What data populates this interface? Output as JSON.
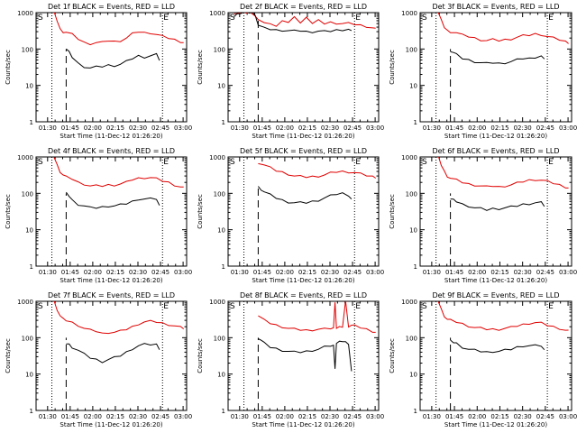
{
  "colors": {
    "events": "#000000",
    "lld": "#e00000",
    "axis": "#000000",
    "background": "#ffffff"
  },
  "shared": {
    "ylabel": "Counts/sec",
    "xlabel": "Start Time (11-Dec-12 01:26:20)",
    "xticks": [
      "01:30",
      "01:45",
      "02:00",
      "02:15",
      "02:30",
      "02:45",
      "03:00"
    ],
    "yticks": [
      "1",
      "10",
      "100",
      "1000"
    ],
    "marker_start": "S",
    "marker_end": "E"
  },
  "chart_data": [
    {
      "type": "line",
      "title": "Det 1f BLACK = Events, RED = LLD",
      "xlim_min": [
        -4,
        96
      ],
      "ylim": [
        1,
        1000
      ],
      "log_y": true,
      "dotted_lines_min": [
        6.5,
        80
      ],
      "dashed_line_min": [
        16,
        1,
        100
      ],
      "series": [
        {
          "name": "RED = LLD",
          "x": [
            8,
            10,
            12,
            14,
            16,
            20,
            24,
            28,
            32,
            36,
            40,
            44,
            48,
            52,
            56,
            60,
            64,
            68,
            72,
            76,
            80,
            84,
            88,
            92,
            94
          ],
          "y": [
            1000,
            600,
            350,
            300,
            290,
            250,
            190,
            150,
            140,
            150,
            150,
            170,
            160,
            170,
            200,
            260,
            300,
            280,
            280,
            250,
            220,
            200,
            180,
            160,
            150
          ]
        },
        {
          "name": "BLACK = Events",
          "x": [
            16,
            18,
            20,
            24,
            28,
            32,
            36,
            40,
            44,
            48,
            52,
            56,
            60,
            64,
            68,
            72,
            76,
            78
          ],
          "y": [
            100,
            80,
            60,
            40,
            33,
            30,
            32,
            33,
            36,
            35,
            38,
            45,
            55,
            65,
            60,
            65,
            70,
            50
          ]
        }
      ]
    },
    {
      "type": "line",
      "title": "Det 2f BLACK = Events, RED = LLD",
      "xlim_min": [
        -4,
        96
      ],
      "ylim": [
        1,
        1000
      ],
      "log_y": true,
      "dotted_lines_min": [
        6.5,
        80
      ],
      "dashed_line_min": [
        16,
        1,
        700
      ],
      "series": [
        {
          "name": "RED = LLD",
          "x": [
            0,
            2,
            4,
            6,
            8,
            10,
            12,
            14,
            16,
            20,
            24,
            28,
            32,
            36,
            40,
            44,
            48,
            52,
            56,
            60,
            64,
            68,
            72,
            76,
            80,
            84,
            88,
            92,
            94
          ],
          "y": [
            900,
            1000,
            1000,
            1000,
            1000,
            1000,
            1000,
            800,
            600,
            550,
            480,
            450,
            600,
            500,
            800,
            500,
            800,
            500,
            600,
            500,
            540,
            520,
            500,
            500,
            480,
            450,
            420,
            380,
            350
          ]
        },
        {
          "name": "BLACK = Events",
          "x": [
            0,
            2,
            4,
            6,
            8,
            10,
            12,
            14,
            16,
            20,
            24,
            28,
            32,
            36,
            40,
            44,
            48,
            52,
            56,
            60,
            64,
            68,
            72,
            76,
            78
          ],
          "y": [
            800,
            900,
            1000,
            1000,
            1000,
            1000,
            1000,
            900,
            450,
            370,
            350,
            330,
            330,
            320,
            310,
            320,
            300,
            300,
            310,
            300,
            310,
            330,
            340,
            350,
            300
          ]
        }
      ]
    },
    {
      "type": "line",
      "title": "Det 3f BLACK = Events, RED = LLD",
      "xlim_min": [
        -4,
        96
      ],
      "ylim": [
        1,
        1000
      ],
      "log_y": true,
      "dotted_lines_min": [
        6.5,
        80
      ],
      "dashed_line_min": [
        16,
        1,
        100
      ],
      "series": [
        {
          "name": "RED = LLD",
          "x": [
            8,
            10,
            12,
            14,
            16,
            20,
            24,
            28,
            32,
            36,
            40,
            44,
            48,
            52,
            56,
            60,
            64,
            68,
            72,
            76,
            80,
            84,
            88,
            92,
            94
          ],
          "y": [
            1000,
            600,
            400,
            320,
            300,
            280,
            240,
            220,
            200,
            180,
            170,
            180,
            170,
            180,
            190,
            210,
            230,
            240,
            260,
            250,
            220,
            200,
            180,
            160,
            150
          ]
        },
        {
          "name": "BLACK = Events",
          "x": [
            16,
            18,
            20,
            24,
            28,
            32,
            36,
            40,
            44,
            48,
            52,
            56,
            60,
            64,
            68,
            72,
            76,
            78
          ],
          "y": [
            90,
            80,
            70,
            55,
            50,
            45,
            42,
            40,
            42,
            40,
            42,
            45,
            50,
            55,
            55,
            60,
            65,
            50
          ]
        }
      ]
    },
    {
      "type": "line",
      "title": "Det 4f BLACK = Events, RED = LLD",
      "xlim_min": [
        -4,
        96
      ],
      "ylim": [
        1,
        1000
      ],
      "log_y": true,
      "dotted_lines_min": [
        6.5,
        80
      ],
      "dashed_line_min": [
        16,
        1,
        100
      ],
      "series": [
        {
          "name": "RED = LLD",
          "x": [
            8,
            10,
            12,
            14,
            16,
            20,
            24,
            28,
            32,
            36,
            40,
            44,
            48,
            52,
            56,
            60,
            64,
            68,
            72,
            76,
            80,
            84,
            88,
            92,
            94
          ],
          "y": [
            1000,
            600,
            400,
            320,
            280,
            250,
            200,
            180,
            160,
            160,
            160,
            170,
            170,
            180,
            200,
            240,
            260,
            270,
            270,
            250,
            220,
            200,
            170,
            150,
            140
          ]
        },
        {
          "name": "BLACK = Events",
          "x": [
            16,
            18,
            20,
            24,
            28,
            32,
            36,
            40,
            44,
            48,
            52,
            56,
            60,
            64,
            68,
            72,
            76,
            78
          ],
          "y": [
            100,
            85,
            65,
            50,
            45,
            40,
            40,
            42,
            45,
            45,
            48,
            52,
            60,
            70,
            70,
            70,
            70,
            45
          ]
        }
      ]
    },
    {
      "type": "line",
      "title": "Det 5f BLACK = Events, RED = LLD",
      "xlim_min": [
        -4,
        96
      ],
      "ylim": [
        1,
        1000
      ],
      "log_y": true,
      "dotted_lines_min": [
        6.5,
        80
      ],
      "dashed_line_min": [
        16,
        1,
        150
      ],
      "series": [
        {
          "name": "RED = LLD",
          "x": [
            16,
            20,
            24,
            28,
            32,
            36,
            40,
            44,
            48,
            52,
            56,
            60,
            64,
            68,
            72,
            76,
            80,
            84,
            88,
            92,
            94
          ],
          "y": [
            700,
            600,
            500,
            420,
            380,
            340,
            300,
            290,
            280,
            290,
            300,
            320,
            360,
            390,
            400,
            390,
            370,
            340,
            310,
            290,
            280
          ]
        },
        {
          "name": "BLACK = Events",
          "x": [
            16,
            18,
            20,
            24,
            28,
            32,
            36,
            40,
            44,
            48,
            52,
            56,
            60,
            64,
            68,
            72,
            76,
            78
          ],
          "y": [
            150,
            130,
            110,
            90,
            75,
            65,
            58,
            55,
            55,
            55,
            60,
            65,
            75,
            85,
            95,
            100,
            90,
            70
          ]
        }
      ]
    },
    {
      "type": "line",
      "title": "Det 6f BLACK = Events, RED = LLD",
      "xlim_min": [
        -4,
        96
      ],
      "ylim": [
        1,
        1000
      ],
      "log_y": true,
      "dotted_lines_min": [
        6.5,
        80
      ],
      "dashed_line_min": [
        16,
        1,
        100
      ],
      "series": [
        {
          "name": "RED = LLD",
          "x": [
            8,
            10,
            12,
            14,
            16,
            20,
            24,
            28,
            32,
            36,
            40,
            44,
            48,
            52,
            56,
            60,
            64,
            68,
            72,
            76,
            80,
            84,
            88,
            92,
            94
          ],
          "y": [
            1000,
            600,
            400,
            300,
            260,
            230,
            200,
            180,
            170,
            160,
            150,
            160,
            150,
            160,
            170,
            190,
            210,
            230,
            240,
            230,
            210,
            190,
            170,
            150,
            140
          ]
        },
        {
          "name": "BLACK = Events",
          "x": [
            16,
            18,
            20,
            24,
            28,
            32,
            36,
            40,
            44,
            48,
            52,
            56,
            60,
            64,
            68,
            72,
            76,
            78
          ],
          "y": [
            70,
            65,
            60,
            50,
            45,
            40,
            38,
            35,
            38,
            38,
            40,
            42,
            45,
            50,
            52,
            55,
            55,
            45
          ]
        }
      ]
    },
    {
      "type": "line",
      "title": "Det 7f BLACK = Events, RED = LLD",
      "xlim_min": [
        -4,
        96
      ],
      "ylim": [
        1,
        1000
      ],
      "log_y": true,
      "dotted_lines_min": [
        6.5,
        80
      ],
      "dashed_line_min": [
        16,
        1,
        100
      ],
      "series": [
        {
          "name": "RED = LLD",
          "x": [
            8,
            10,
            12,
            14,
            16,
            20,
            24,
            28,
            32,
            36,
            40,
            44,
            48,
            52,
            56,
            60,
            64,
            68,
            72,
            76,
            80,
            84,
            88,
            92,
            94
          ],
          "y": [
            1000,
            600,
            400,
            320,
            300,
            260,
            220,
            180,
            160,
            150,
            130,
            140,
            140,
            150,
            170,
            200,
            240,
            270,
            280,
            270,
            250,
            230,
            210,
            190,
            180
          ]
        },
        {
          "name": "BLACK = Events",
          "x": [
            16,
            18,
            20,
            24,
            28,
            32,
            36,
            40,
            44,
            48,
            52,
            56,
            60,
            64,
            68,
            72,
            76,
            78
          ],
          "y": [
            70,
            65,
            55,
            45,
            35,
            28,
            25,
            22,
            25,
            28,
            32,
            40,
            50,
            60,
            65,
            65,
            65,
            50
          ]
        }
      ]
    },
    {
      "type": "line",
      "title": "Det 8f BLACK = Events, RED = LLD",
      "xlim_min": [
        -4,
        96
      ],
      "ylim": [
        1,
        1000
      ],
      "log_y": true,
      "dotted_lines_min": [
        6.5,
        80
      ],
      "dashed_line_min": [
        16,
        1,
        100
      ],
      "series": [
        {
          "name": "RED = LLD",
          "x": [
            16,
            20,
            24,
            28,
            32,
            36,
            40,
            44,
            48,
            52,
            56,
            60,
            64,
            66,
            67,
            68,
            70,
            72,
            74,
            76,
            78,
            80,
            84,
            88,
            92,
            94
          ],
          "y": [
            400,
            300,
            250,
            220,
            200,
            180,
            170,
            165,
            160,
            165,
            170,
            170,
            180,
            180,
            1000,
            180,
            190,
            200,
            1000,
            210,
            220,
            210,
            190,
            170,
            150,
            140
          ]
        },
        {
          "name": "BLACK = Events",
          "x": [
            16,
            18,
            20,
            24,
            28,
            32,
            36,
            40,
            44,
            48,
            52,
            56,
            60,
            64,
            66,
            67,
            68,
            70,
            72,
            74,
            76,
            78
          ],
          "y": [
            100,
            85,
            70,
            55,
            50,
            45,
            42,
            40,
            40,
            42,
            45,
            48,
            55,
            60,
            60,
            15,
            70,
            75,
            80,
            75,
            70,
            12
          ]
        }
      ]
    },
    {
      "type": "line",
      "title": "Det 9f BLACK = Events, RED = LLD",
      "xlim_min": [
        -4,
        96
      ],
      "ylim": [
        1,
        1000
      ],
      "log_y": true,
      "dotted_lines_min": [
        6.5,
        80
      ],
      "dashed_line_min": [
        16,
        1,
        100
      ],
      "series": [
        {
          "name": "RED = LLD",
          "x": [
            8,
            10,
            12,
            14,
            16,
            20,
            24,
            28,
            32,
            36,
            40,
            44,
            48,
            52,
            56,
            60,
            64,
            68,
            72,
            76,
            80,
            84,
            88,
            92,
            94
          ],
          "y": [
            1000,
            600,
            400,
            320,
            300,
            270,
            240,
            210,
            190,
            180,
            170,
            170,
            170,
            180,
            190,
            210,
            230,
            250,
            260,
            250,
            220,
            200,
            180,
            160,
            150
          ]
        },
        {
          "name": "BLACK = Events",
          "x": [
            16,
            18,
            20,
            24,
            28,
            32,
            36,
            40,
            44,
            48,
            52,
            56,
            60,
            64,
            68,
            72,
            76,
            78
          ],
          "y": [
            80,
            75,
            70,
            55,
            48,
            45,
            42,
            40,
            42,
            42,
            45,
            48,
            55,
            60,
            60,
            60,
            60,
            45
          ]
        }
      ]
    }
  ]
}
